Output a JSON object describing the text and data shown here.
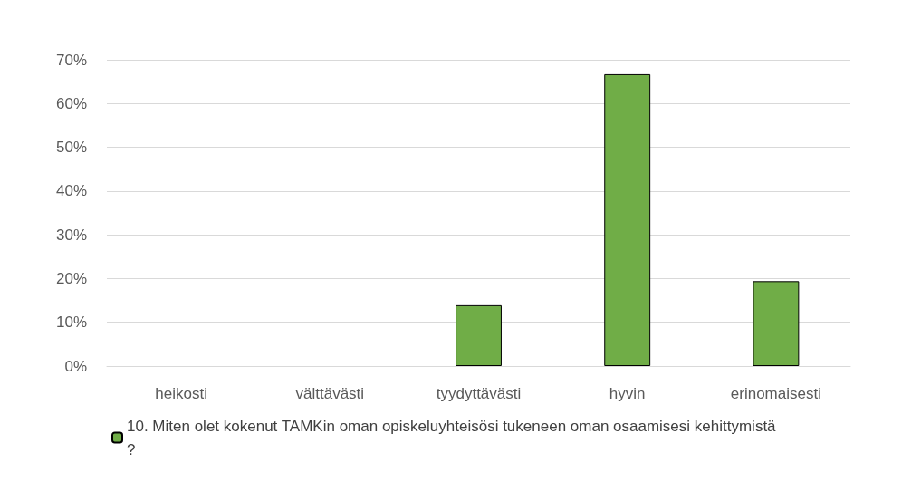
{
  "chart_data": {
    "type": "bar",
    "categories": [
      "heikosti",
      "välttävästi",
      "tyydyttävästi",
      "hyvin",
      "erinomaisesti"
    ],
    "series": [
      {
        "name": "10. Miten olet kokenut TAMKin oman opiskeluyhteisösi tukeneen oman osaamisesi kehittymistä?",
        "color": "#70ad47",
        "values": [
          0,
          0,
          13.9,
          66.7,
          19.4
        ]
      }
    ],
    "ylim": [
      0,
      70
    ],
    "yticks": [
      {
        "value": 0,
        "label": "0%"
      },
      {
        "value": 10,
        "label": "10%"
      },
      {
        "value": 20,
        "label": "20%"
      },
      {
        "value": 30,
        "label": "30%"
      },
      {
        "value": 40,
        "label": "40%"
      },
      {
        "value": 50,
        "label": "50%"
      },
      {
        "value": 60,
        "label": "60%"
      },
      {
        "value": 70,
        "label": "70%"
      }
    ],
    "grid": "y",
    "legend": "bottom"
  }
}
